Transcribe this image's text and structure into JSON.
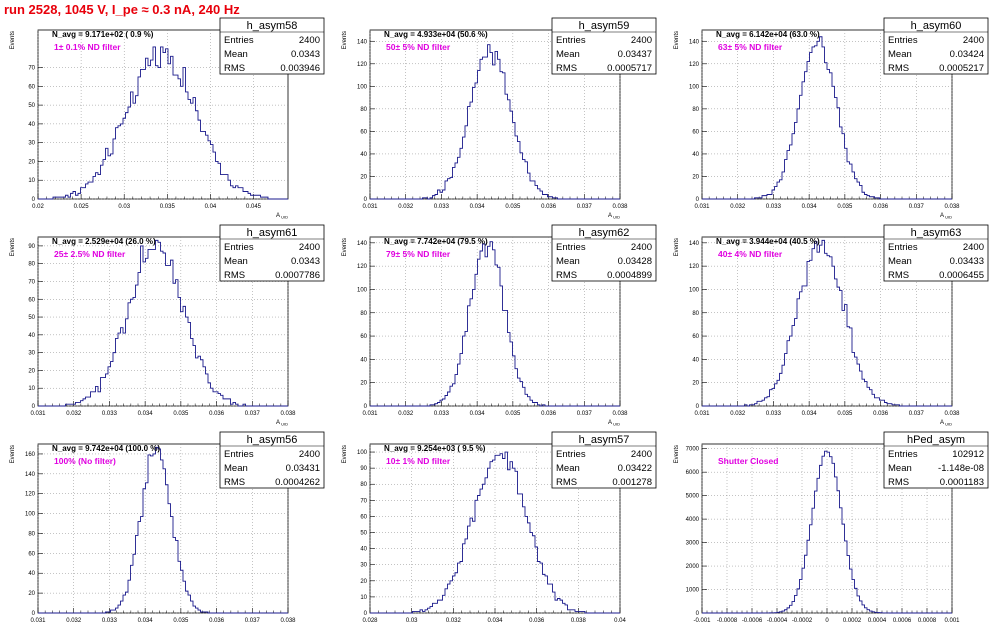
{
  "page": {
    "title": "run 2528,  1045 V, I_pe ≈ 0.3 nA, 240 Hz"
  },
  "colors": {
    "histogram": "#1a1a8c",
    "filter_label": "#e000e0",
    "title": "#e8000b",
    "axis": "#000000"
  },
  "common": {
    "ylabel": "Events",
    "xlabel": "A_UID",
    "stat_labels": [
      "Entries",
      "Mean",
      "RMS"
    ]
  },
  "chart_data": [
    {
      "type": "histogram",
      "name": "h_asym58",
      "navg": "N_avg = 9.171e+02 ( 0.9 %)",
      "filter": "1± 0.1% ND filter",
      "entries": "2400",
      "mean": "0.0343",
      "rms": "0.003946",
      "mean_value": 0.0343,
      "rms_value": 0.003946,
      "xlim": [
        0.02,
        0.049
      ],
      "ylim": [
        0,
        90
      ],
      "xticks": [
        "0.02",
        "0.025",
        "0.03",
        "0.035",
        "0.04",
        "0.045"
      ],
      "xtick_values": [
        0.02,
        0.025,
        0.03,
        0.035,
        0.04,
        0.045
      ],
      "yticks": [
        0,
        10,
        20,
        30,
        40,
        50,
        60,
        70
      ],
      "peak": 78,
      "bins": 100
    },
    {
      "type": "histogram",
      "name": "h_asym59",
      "navg": "N_avg = 4.933e+04 (50.6 %)",
      "filter": "50± 5% ND filter",
      "entries": "2400",
      "mean": "0.03437",
      "rms": "0.0005717",
      "mean_value": 0.03437,
      "rms_value": 0.0005717,
      "xlim": [
        0.031,
        0.038
      ],
      "ylim": [
        0,
        150
      ],
      "xticks": [
        "0.031",
        "0.032",
        "0.033",
        "0.034",
        "0.035",
        "0.036",
        "0.037",
        "0.038"
      ],
      "xtick_values": [
        0.031,
        0.032,
        0.033,
        0.034,
        0.035,
        0.036,
        0.037,
        0.038
      ],
      "yticks": [
        0,
        20,
        40,
        60,
        80,
        100,
        120,
        140
      ],
      "peak": 132,
      "bins": 100
    },
    {
      "type": "histogram",
      "name": "h_asym60",
      "navg": "N_avg = 6.142e+04 (63.0 %)",
      "filter": "63± 5% ND filter",
      "entries": "2400",
      "mean": "0.03424",
      "rms": "0.0005217",
      "mean_value": 0.03424,
      "rms_value": 0.0005217,
      "xlim": [
        0.031,
        0.038
      ],
      "ylim": [
        0,
        150
      ],
      "xticks": [
        "0.031",
        "0.032",
        "0.033",
        "0.034",
        "0.035",
        "0.036",
        "0.037",
        "0.038"
      ],
      "xtick_values": [
        0.031,
        0.032,
        0.033,
        0.034,
        0.035,
        0.036,
        0.037,
        0.038
      ],
      "yticks": [
        0,
        20,
        40,
        60,
        80,
        100,
        120,
        140
      ],
      "peak": 140,
      "bins": 100
    },
    {
      "type": "histogram",
      "name": "h_asym61",
      "navg": "N_avg = 2.529e+04 (26.0 %)",
      "filter": "25± 2.5% ND filter",
      "entries": "2400",
      "mean": "0.0343",
      "rms": "0.0007786",
      "mean_value": 0.0343,
      "rms_value": 0.0007786,
      "xlim": [
        0.031,
        0.038
      ],
      "ylim": [
        0,
        95
      ],
      "xticks": [
        "0.031",
        "0.032",
        "0.033",
        "0.034",
        "0.035",
        "0.036",
        "0.037",
        "0.038"
      ],
      "xtick_values": [
        0.031,
        0.032,
        0.033,
        0.034,
        0.035,
        0.036,
        0.037,
        0.038
      ],
      "yticks": [
        0,
        10,
        20,
        30,
        40,
        50,
        60,
        70,
        80,
        90
      ],
      "peak": 90,
      "bins": 100
    },
    {
      "type": "histogram",
      "name": "h_asym62",
      "navg": "N_avg = 7.742e+04 (79.5 %)",
      "filter": "79± 5% ND filter",
      "entries": "2400",
      "mean": "0.03428",
      "rms": "0.0004899",
      "mean_value": 0.03428,
      "rms_value": 0.0004899,
      "xlim": [
        0.031,
        0.038
      ],
      "ylim": [
        0,
        145
      ],
      "xticks": [
        "0.031",
        "0.032",
        "0.033",
        "0.034",
        "0.035",
        "0.036",
        "0.037",
        "0.038"
      ],
      "xtick_values": [
        0.031,
        0.032,
        0.033,
        0.034,
        0.035,
        0.036,
        0.037,
        0.038
      ],
      "yticks": [
        0,
        20,
        40,
        60,
        80,
        100,
        120,
        140
      ],
      "peak": 140,
      "bins": 100
    },
    {
      "type": "histogram",
      "name": "h_asym63",
      "navg": "N_avg = 3.944e+04 (40.5 %)",
      "filter": "40± 4% ND filter",
      "entries": "2400",
      "mean": "0.03433",
      "rms": "0.0006455",
      "mean_value": 0.03433,
      "rms_value": 0.0006455,
      "xlim": [
        0.031,
        0.038
      ],
      "ylim": [
        0,
        145
      ],
      "xticks": [
        "0.031",
        "0.032",
        "0.033",
        "0.034",
        "0.035",
        "0.036",
        "0.037",
        "0.038"
      ],
      "xtick_values": [
        0.031,
        0.032,
        0.033,
        0.034,
        0.035,
        0.036,
        0.037,
        0.038
      ],
      "yticks": [
        0,
        20,
        40,
        60,
        80,
        100,
        120,
        140
      ],
      "peak": 140,
      "bins": 100
    },
    {
      "type": "histogram",
      "name": "h_asym56",
      "navg": "N_avg = 9.742e+04 (100.0 %)",
      "filter": "100% (No filter)",
      "entries": "2400",
      "mean": "0.03431",
      "rms": "0.0004262",
      "mean_value": 0.03431,
      "rms_value": 0.0004262,
      "xlim": [
        0.031,
        0.038
      ],
      "ylim": [
        0,
        170
      ],
      "xticks": [
        "0.031",
        "0.032",
        "0.033",
        "0.034",
        "0.035",
        "0.036",
        "0.037",
        "0.038"
      ],
      "xtick_values": [
        0.031,
        0.032,
        0.033,
        0.034,
        0.035,
        0.036,
        0.037,
        0.038
      ],
      "yticks": [
        0,
        20,
        40,
        60,
        80,
        100,
        120,
        140,
        160
      ],
      "peak": 165,
      "bins": 100
    },
    {
      "type": "histogram",
      "name": "h_asym57",
      "navg": "N_avg = 9.254e+03 ( 9.5 %)",
      "filter": "10± 1% ND filter",
      "entries": "2400",
      "mean": "0.03422",
      "rms": "0.001278",
      "mean_value": 0.03422,
      "rms_value": 0.001278,
      "xlim": [
        0.028,
        0.04
      ],
      "ylim": [
        0,
        105
      ],
      "xticks": [
        "0.028",
        "0.03",
        "0.032",
        "0.034",
        "0.036",
        "0.038",
        "0.04"
      ],
      "xtick_values": [
        0.028,
        0.03,
        0.032,
        0.034,
        0.036,
        0.038,
        0.04
      ],
      "yticks": [
        0,
        10,
        20,
        30,
        40,
        50,
        60,
        70,
        80,
        90,
        100
      ],
      "peak": 100,
      "bins": 100
    },
    {
      "type": "histogram",
      "name": "hPed_asym",
      "navg": "",
      "filter": "Shutter Closed",
      "entries": "102912",
      "mean": "-1.148e-08",
      "rms": "0.0001183",
      "mean_value": 0.0,
      "rms_value": 0.0001183,
      "xlim": [
        -0.001,
        0.001
      ],
      "ylim": [
        0,
        7200
      ],
      "xticks": [
        "-0.001",
        "-0.0008",
        "-0.0006",
        "-0.0004",
        "-0.0002",
        "0",
        "0.0002",
        "0.0004",
        "0.0006",
        "0.0008",
        "0.001"
      ],
      "xtick_values": [
        -0.001,
        -0.0008,
        -0.0006,
        -0.0004,
        -0.0002,
        0,
        0.0002,
        0.0004,
        0.0006,
        0.0008,
        0.001
      ],
      "yticks": [
        0,
        1000,
        2000,
        3000,
        4000,
        5000,
        6000,
        7000
      ],
      "peak": 6900,
      "bins": 100
    }
  ]
}
